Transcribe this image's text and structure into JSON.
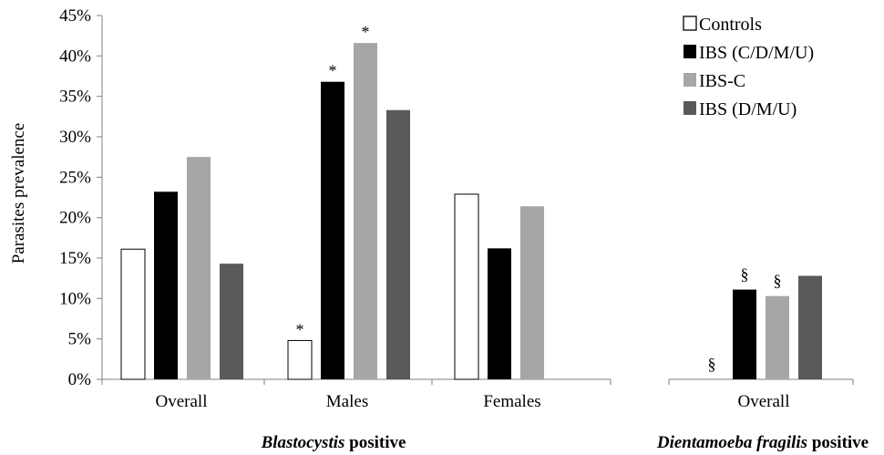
{
  "chart_data": {
    "type": "bar",
    "ylabel": "Parasites prevalence",
    "ylim": [
      0,
      45
    ],
    "yticks": [
      "0%",
      "5%",
      "10%",
      "15%",
      "20%",
      "25%",
      "30%",
      "35%",
      "40%",
      "45%"
    ],
    "legend_position": "top-right",
    "colors": [
      "#ffffff",
      "#000000",
      "#a6a6a6",
      "#595959"
    ],
    "series": [
      {
        "name": "Controls"
      },
      {
        "name": "IBS (C/D/M/U)"
      },
      {
        "name": "IBS-C"
      },
      {
        "name": "IBS (D/M/U)"
      }
    ],
    "panels": [
      {
        "group_label": "Blastocystis",
        "group_suffix": " positive",
        "categories": [
          {
            "label": "Overall",
            "values": [
              16.1,
              23.2,
              27.5,
              14.3
            ],
            "marks": [
              "",
              "",
              "",
              ""
            ]
          },
          {
            "label": "Males",
            "values": [
              4.8,
              36.8,
              41.6,
              33.3
            ],
            "marks": [
              "*",
              "*",
              "*",
              ""
            ]
          },
          {
            "label": "Females",
            "values": [
              22.9,
              16.2,
              21.4,
              null
            ],
            "marks": [
              "",
              "",
              "",
              ""
            ]
          }
        ]
      },
      {
        "group_label": "Dientamoeba fragilis",
        "group_suffix": " positive",
        "categories": [
          {
            "label": "Overall",
            "values": [
              0,
              11.1,
              10.3,
              12.8
            ],
            "marks": [
              "§",
              "§",
              "§",
              ""
            ]
          }
        ]
      }
    ]
  }
}
